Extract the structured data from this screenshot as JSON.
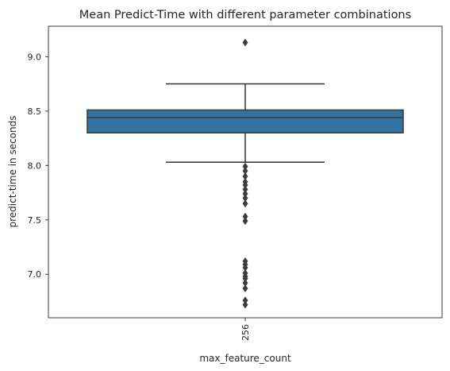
{
  "chart_data": {
    "type": "box",
    "title": "Mean Predict-Time with different parameter combinations",
    "xlabel": "max_feature_count",
    "ylabel": "predict-time in seconds",
    "categories": [
      "256"
    ],
    "ylim": [
      6.6,
      9.28
    ],
    "yticks": [
      7.0,
      7.5,
      8.0,
      8.5,
      9.0
    ],
    "ytick_labels": [
      "7.0",
      "7.5",
      "8.0",
      "8.5",
      "9.0"
    ],
    "grid": false,
    "box": {
      "category": "256",
      "q1": 8.3,
      "median": 8.44,
      "q3": 8.51,
      "whisker_low": 8.03,
      "whisker_high": 8.75,
      "outliers": [
        9.13,
        7.99,
        7.95,
        7.9,
        7.85,
        7.82,
        7.78,
        7.74,
        7.7,
        7.65,
        7.53,
        7.49,
        7.12,
        7.09,
        7.06,
        7.01,
        6.98,
        6.96,
        6.92,
        6.87,
        6.76,
        6.72
      ],
      "color": "#3274a1",
      "line_color": "#3d3d3d"
    }
  }
}
